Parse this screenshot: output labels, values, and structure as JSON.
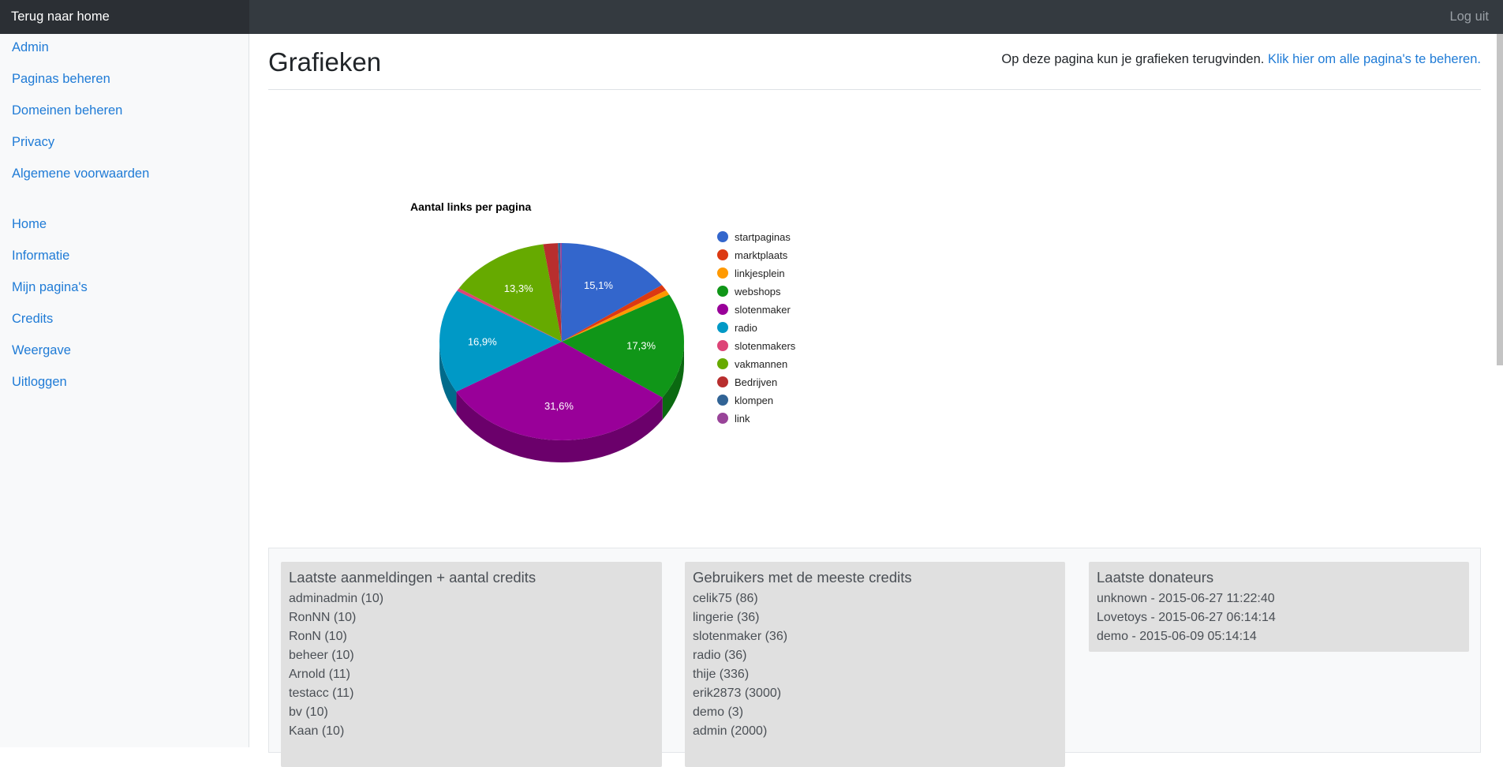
{
  "topbar": {
    "brand": "Terug naar home",
    "logout": "Log uit"
  },
  "sidebar": {
    "items": [
      "Admin",
      "Paginas beheren",
      "Domeinen beheren",
      "Privacy",
      "Algemene voorwaarden",
      "Home",
      "Informatie",
      "Mijn pagina's",
      "Credits",
      "Weergave",
      "Uitloggen"
    ]
  },
  "page": {
    "title": "Grafieken",
    "intro_text": "Op deze pagina kun je grafieken terugvinden.",
    "intro_link": "Klik hier om alle pagina's te beheren."
  },
  "chart_data": {
    "type": "pie",
    "title": "Aantal links per pagina",
    "legend_position": "right",
    "categories": [
      "startpaginas",
      "marktplaats",
      "linkjesplein",
      "webshops",
      "slotenmaker",
      "radio",
      "slotenmakers",
      "vakmannen",
      "Bedrijven",
      "klompen",
      "link"
    ],
    "values": [
      15.1,
      1.0,
      0.8,
      17.3,
      31.6,
      16.9,
      0.5,
      13.3,
      1.9,
      0.3,
      0.2
    ],
    "data_labels": [
      "15,1%",
      "",
      "",
      "17,3%",
      "31,6%",
      "16,9%",
      "",
      "13,3%",
      "",
      "",
      ""
    ],
    "colors": [
      "#3366cc",
      "#dc3912",
      "#ff9900",
      "#109618",
      "#990099",
      "#0099c6",
      "#dd4477",
      "#66aa00",
      "#b82e2e",
      "#316395",
      "#994499"
    ]
  },
  "panels": [
    {
      "title": "Laatste aanmeldingen + aantal credits",
      "items": [
        "adminadmin (10)",
        "RonNN (10)",
        "RonN (10)",
        "beheer (10)",
        "Arnold (11)",
        "testacc (11)",
        "bv (10)",
        "Kaan (10)"
      ]
    },
    {
      "title": "Gebruikers met de meeste credits",
      "items": [
        "celik75 (86)",
        "lingerie (36)",
        "slotenmaker (36)",
        "radio (36)",
        "thije (336)",
        "erik2873 (3000)",
        "demo (3)",
        "admin (2000)"
      ]
    },
    {
      "title": "Laatste donateurs",
      "items": [
        "unknown - 2015-06-27 11:22:40",
        "Lovetoys - 2015-06-27 06:14:14",
        "demo - 2015-06-09 05:14:14"
      ]
    }
  ]
}
